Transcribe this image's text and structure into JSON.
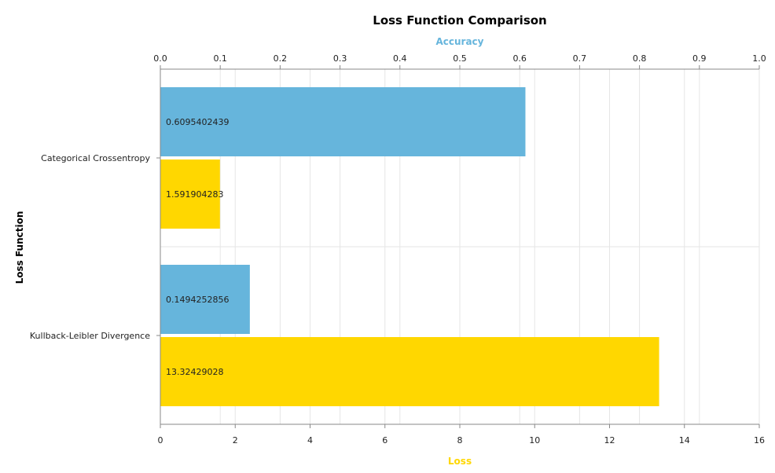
{
  "chart_data": {
    "type": "bar",
    "orientation": "horizontal",
    "title": "Loss Function Comparison",
    "ylabel": "Loss Function",
    "categories": [
      "Categorical Crossentropy",
      "Kullback-Leibler Divergence"
    ],
    "series": [
      {
        "name": "Accuracy",
        "axis": "top",
        "color": "#66b5dc",
        "values": [
          0.6095402439,
          0.1494252856
        ],
        "labels": [
          "0.6095402439",
          "0.1494252856"
        ]
      },
      {
        "name": "Loss",
        "axis": "bottom",
        "color": "#ffd700",
        "values": [
          1.591904283,
          13.32429028
        ],
        "labels": [
          "1.591904283",
          "13.32429028"
        ]
      }
    ],
    "top_axis": {
      "title": "Accuracy",
      "range": [
        0,
        1.0
      ],
      "ticks": [
        "0.0",
        "0.1",
        "0.2",
        "0.3",
        "0.4",
        "0.5",
        "0.6",
        "0.7",
        "0.8",
        "0.9",
        "1.0"
      ]
    },
    "bottom_axis": {
      "title": "Loss",
      "range": [
        0,
        16
      ],
      "ticks": [
        "0",
        "2",
        "4",
        "6",
        "8",
        "10",
        "12",
        "14",
        "16"
      ]
    },
    "grid": true
  }
}
